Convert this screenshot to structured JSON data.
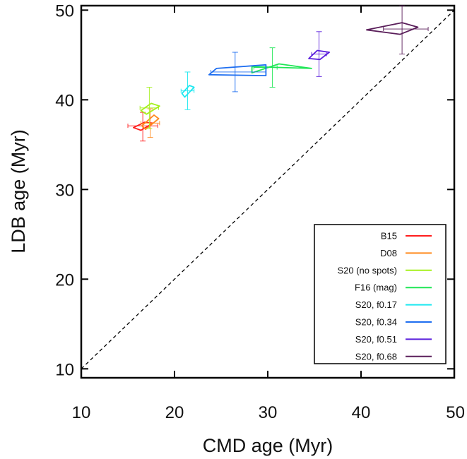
{
  "chart_data": {
    "type": "scatter",
    "title": "",
    "xlabel": "CMD age (Myr)",
    "ylabel": "LDB age (Myr)",
    "xlim": [
      10,
      50
    ],
    "ylim": [
      9,
      50.5
    ],
    "xticks": [
      10,
      20,
      30,
      40,
      50
    ],
    "yticks": [
      10,
      20,
      30,
      40,
      50
    ],
    "grid": false,
    "legend_position": "bottom-right",
    "reference_line": {
      "type": "one-to-one",
      "style": "dashed"
    },
    "series": [
      {
        "name": "B15",
        "color": "#ff1e1e",
        "x": 16.6,
        "y": 37.1,
        "x_err": [
          1.6,
          1.6
        ],
        "y_err": [
          1.7,
          1.5
        ],
        "box": [
          [
            15.6,
            36.9
          ],
          [
            16.8,
            37.5
          ],
          [
            17.7,
            37.4
          ],
          [
            16.4,
            36.6
          ]
        ]
      },
      {
        "name": "D08",
        "color": "#ff8a1e",
        "x": 17.4,
        "y": 37.4,
        "x_err": [
          1.0,
          1.0
        ],
        "y_err": [
          1.6,
          1.6
        ],
        "box": [
          [
            16.5,
            37.1
          ],
          [
            17.8,
            38.3
          ],
          [
            18.3,
            37.9
          ],
          [
            16.9,
            36.7
          ]
        ]
      },
      {
        "name": "S20 (no spots)",
        "color": "#a5f01e",
        "x": 17.3,
        "y": 39.1,
        "x_err": [
          1.0,
          1.0
        ],
        "y_err": [
          2.3,
          2.3
        ],
        "box": [
          [
            16.4,
            38.8
          ],
          [
            17.5,
            39.6
          ],
          [
            18.4,
            39.3
          ],
          [
            17.0,
            38.4
          ]
        ]
      },
      {
        "name": "F16 (mag)",
        "color": "#1ee655",
        "x": 30.5,
        "y": 43.6,
        "x_err": [
          2.0,
          0.5
        ],
        "y_err": [
          2.2,
          2.2
        ],
        "box": [
          [
            28.3,
            43.0
          ],
          [
            31.2,
            44.0
          ],
          [
            34.7,
            43.5
          ],
          [
            28.3,
            43.7
          ]
        ]
      },
      {
        "name": "S20, f0.17",
        "color": "#1ee8f0",
        "x": 21.4,
        "y": 41.0,
        "x_err": [
          0.7,
          0.7
        ],
        "y_err": [
          2.1,
          2.1
        ],
        "box": [
          [
            20.8,
            40.7
          ],
          [
            21.6,
            41.6
          ],
          [
            22.1,
            41.4
          ],
          [
            21.1,
            40.3
          ]
        ]
      },
      {
        "name": "S20, f0.34",
        "color": "#1e6ef0",
        "x": 26.5,
        "y": 43.1,
        "x_err": [
          2.6,
          3.3
        ],
        "y_err": [
          2.2,
          2.2
        ],
        "box": [
          [
            23.7,
            42.8
          ],
          [
            24.5,
            43.5
          ],
          [
            29.8,
            43.9
          ],
          [
            29.8,
            42.7
          ]
        ]
      },
      {
        "name": "S20, f0.51",
        "color": "#5a1edc",
        "x": 35.5,
        "y": 45.1,
        "x_err": [
          0.8,
          0.8
        ],
        "y_err": [
          2.5,
          2.5
        ],
        "box": [
          [
            34.4,
            44.6
          ],
          [
            35.3,
            45.5
          ],
          [
            36.6,
            45.3
          ],
          [
            35.6,
            44.5
          ]
        ]
      },
      {
        "name": "S20, f0.68",
        "color": "#5a1e5a",
        "x": 44.4,
        "y": 47.9,
        "x_err": [
          2.0,
          2.8
        ],
        "y_err": [
          2.8,
          2.6
        ],
        "box": [
          [
            40.6,
            47.8
          ],
          [
            44.4,
            48.6
          ],
          [
            46.1,
            48.1
          ],
          [
            44.2,
            47.3
          ]
        ]
      }
    ]
  }
}
